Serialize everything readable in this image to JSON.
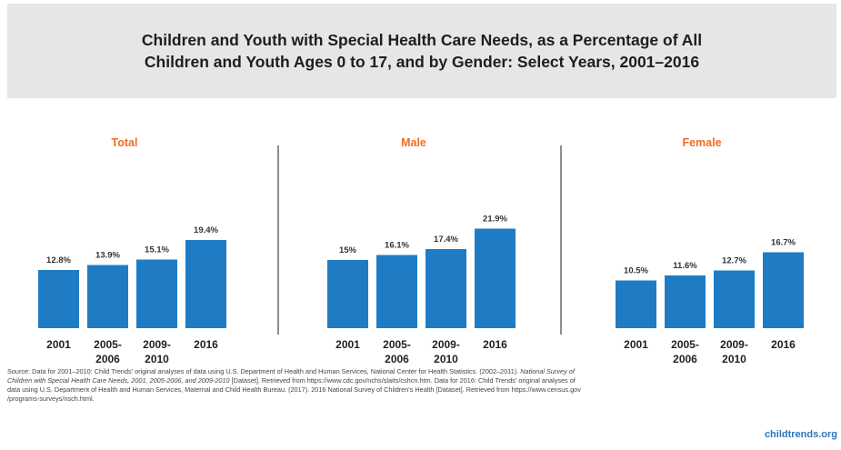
{
  "header": {
    "title_line1": "Children and Youth with Special Health Care Needs, as a Percentage of All",
    "title_line2": "Children and Youth Ages 0 to 17, and by Gender: Select Years, 2001–2016"
  },
  "colors": {
    "bar": "#1f7cc4",
    "panel_title": "#f26b21",
    "divider": "#444444"
  },
  "chart_data": [
    {
      "type": "bar",
      "title": "Total",
      "categories": [
        "2001",
        "2005-2006",
        "2009-2010",
        "2016"
      ],
      "values": [
        12.8,
        13.9,
        15.1,
        19.4
      ],
      "labels": [
        "12.8%",
        "13.9%",
        "15.1%",
        "19.4%"
      ]
    },
    {
      "type": "bar",
      "title": "Male",
      "categories": [
        "2001",
        "2005-2006",
        "2009-2010",
        "2016"
      ],
      "values": [
        15,
        16.1,
        17.4,
        21.9
      ],
      "labels": [
        "15%",
        "16.1%",
        "17.4%",
        "21.9%"
      ]
    },
    {
      "type": "bar",
      "title": "Female",
      "categories": [
        "2001",
        "2005-2006",
        "2009-2010",
        "2016"
      ],
      "values": [
        10.5,
        11.6,
        12.7,
        16.7
      ],
      "labels": [
        "10.5%",
        "11.6%",
        "12.7%",
        "16.7%"
      ]
    }
  ],
  "source": {
    "line1_a": "Source: Data for 2001–2010: Child Trends' original analyses of data using U.S. Department of Health and Human Services, National Center for Health Statistics. (2002–2011). ",
    "line1_b": "National Survey of",
    "line2_a": "Children with Special Health Care Needs, 2001, 2005-2006, and 2009-2010",
    "line2_b": " [Dataset]. Retrieved from https://www.cdc.gov/nchs/slaits/cshcn.htm. Data for 2016: Child Trends' original analyses of",
    "line3": "data using U.S. Department of Health and Human Services, Maternal and Child Health Bureau. (2017). 2016 National Survey of Children's Health [Dataset]. Retrieved from https://www.census.gov",
    "line4": "/programs-surveys/nsch.html."
  },
  "brand": "childtrends.org"
}
